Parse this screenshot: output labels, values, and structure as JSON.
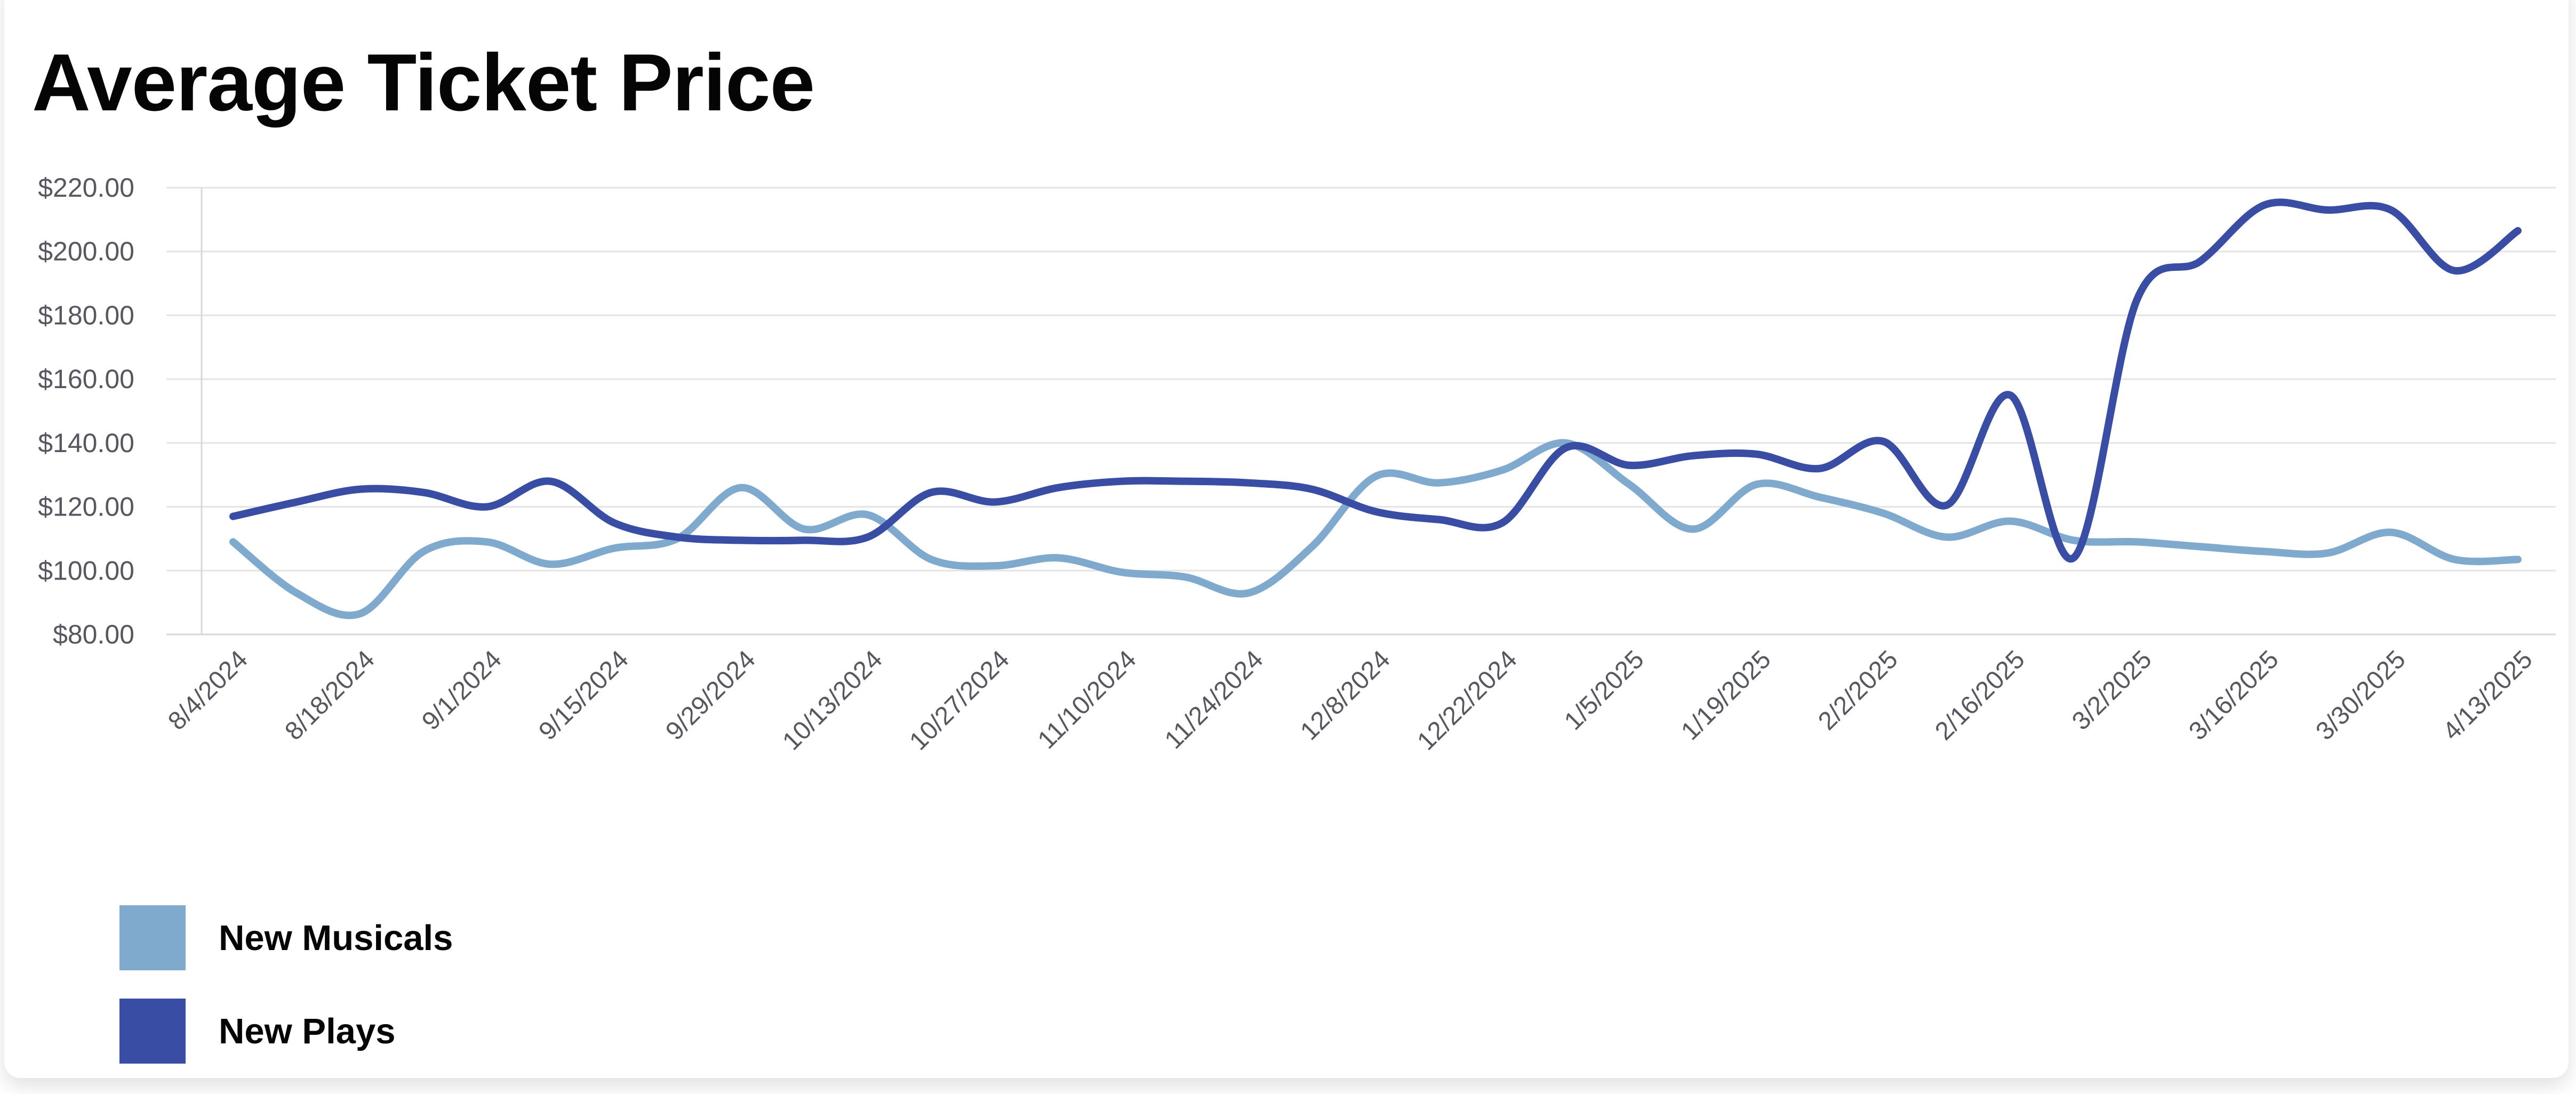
{
  "header": {
    "title": "Average Ticket Price"
  },
  "legend": {
    "items": [
      {
        "label": "New Musicals",
        "color": "#7FAACD"
      },
      {
        "label": "New Plays",
        "color": "#3A4DA4"
      }
    ]
  },
  "axes": {
    "y_tick_labels": [
      "$220.00",
      "$200.00",
      "$180.00",
      "$160.00",
      "$140.00",
      "$120.00",
      "$100.00",
      "$80.00"
    ],
    "x_tick_labels": [
      "8/4/2024",
      "8/18/2024",
      "9/1/2024",
      "9/15/2024",
      "9/29/2024",
      "10/13/2024",
      "10/27/2024",
      "11/10/2024",
      "11/24/2024",
      "12/8/2024",
      "12/22/2024",
      "1/5/2025",
      "1/19/2025",
      "2/2/2025",
      "2/16/2025",
      "3/2/2025",
      "3/16/2025",
      "3/30/2025",
      "4/13/2025"
    ]
  },
  "chart_data": {
    "type": "line",
    "title": "Average Ticket Price",
    "x": [
      "8/4/2024",
      "8/11/2024",
      "8/18/2024",
      "8/25/2024",
      "9/1/2024",
      "9/8/2024",
      "9/15/2024",
      "9/22/2024",
      "9/29/2024",
      "10/6/2024",
      "10/13/2024",
      "10/20/2024",
      "10/27/2024",
      "11/3/2024",
      "11/10/2024",
      "11/17/2024",
      "11/24/2024",
      "12/1/2024",
      "12/8/2024",
      "12/15/2024",
      "12/22/2024",
      "12/29/2024",
      "1/5/2025",
      "1/12/2025",
      "1/19/2025",
      "1/26/2025",
      "2/2/2025",
      "2/9/2025",
      "2/16/2025",
      "2/23/2025",
      "3/2/2025",
      "3/9/2025",
      "3/16/2025",
      "3/23/2025",
      "3/30/2025",
      "4/6/2025",
      "4/13/2025"
    ],
    "x_labels_shown_every": 2,
    "series": [
      {
        "name": "New Musicals",
        "color": "#7FAACD",
        "values": [
          109,
          93,
          86.5,
          106,
          109,
          102,
          107,
          110,
          126,
          113,
          117.5,
          103.5,
          101.5,
          104,
          99.5,
          98,
          93,
          107.5,
          129.5,
          127.5,
          131.5,
          140,
          127,
          113,
          127,
          123,
          118,
          110.5,
          115.5,
          109.5,
          109,
          107.5,
          106,
          105.5,
          112,
          103.5,
          103.5
        ]
      },
      {
        "name": "New Plays",
        "color": "#3A4DA4",
        "values": [
          117,
          121.5,
          125.5,
          124.5,
          120,
          128,
          115,
          110.5,
          109.5,
          109.5,
          110.5,
          124.5,
          121.5,
          126,
          128,
          128,
          127.5,
          125.5,
          118.5,
          116,
          115,
          138.5,
          133,
          136,
          136.5,
          132,
          140.5,
          120.5,
          155,
          104,
          185,
          197,
          214.5,
          213,
          213,
          194,
          206.5
        ]
      }
    ],
    "xlabel": "",
    "ylabel": "",
    "ylim": [
      80,
      220
    ],
    "y_tick_values": [
      220,
      200,
      180,
      160,
      140,
      120,
      100,
      80
    ],
    "y_tick_format": "$%.2f",
    "grid": "horizontal",
    "legend_position": "bottom-left"
  },
  "style": {
    "background": "#ffffff",
    "gridline_color": "#E4E4E4",
    "baseline_color": "#D7D7D7",
    "axis_line_color": "#D7D7D7",
    "tick_label_color": "#56585F",
    "title_color": "#050505"
  }
}
